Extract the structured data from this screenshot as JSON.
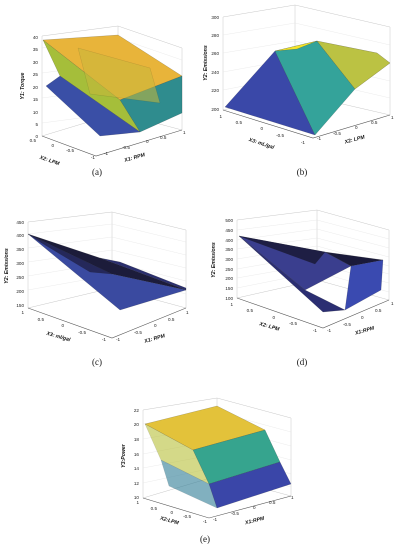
{
  "figure": {
    "captions": [
      "(a)",
      "(b)",
      "(c)",
      "(d)",
      "(e)"
    ]
  },
  "chart_data": [
    {
      "type": "surface",
      "panel": "(a)",
      "zlabel": "Y1: Torque",
      "xlabel": "X1: RPM",
      "ylabel": "X2: LPM",
      "z_ticks": [
        "0",
        "5",
        "10",
        "15",
        "20",
        "25",
        "30",
        "35",
        "40"
      ],
      "x_ticks": [
        "-1",
        "-0.5",
        "0",
        "0.5",
        "1"
      ],
      "y_ticks": [
        "0.5",
        "0",
        "-0.5",
        "-1"
      ],
      "zlim": [
        0,
        40
      ],
      "surface": {
        "z_corner_x-1_y-1": 30,
        "z_corner_x1_y-1": 10,
        "z_corner_x1_y1": 14,
        "z_corner_x-1_y1": 33,
        "z_peak": 35,
        "colormap": "parula"
      }
    },
    {
      "type": "surface",
      "panel": "(b)",
      "zlabel": "Y2: Emissions",
      "xlabel": "X2: LPM",
      "ylabel": "X3: mL/gal",
      "z_ticks": [
        "200",
        "220",
        "240",
        "260",
        "280",
        "300"
      ],
      "x_ticks": [
        "-1",
        "-0.5",
        "0",
        "0.5",
        "1"
      ],
      "y_ticks": [
        "1",
        "0.5",
        "0",
        "-0.5",
        "-1"
      ],
      "zlim": [
        200,
        300
      ],
      "surface": {
        "z_front": 200,
        "z_ridge": 285,
        "z_back": 270,
        "colormap": "parula"
      }
    },
    {
      "type": "surface",
      "panel": "(c)",
      "zlabel": "Y2: Emissions",
      "xlabel": "X1: RPM",
      "ylabel": "X3: ml/gal",
      "z_ticks": [
        "150",
        "200",
        "250",
        "300",
        "350",
        "400",
        "450"
      ],
      "x_ticks": [
        "-1",
        "-0.5",
        "0",
        "0.5",
        "1"
      ],
      "y_ticks": [
        "1",
        "0.5",
        "0",
        "-0.5",
        "-1"
      ],
      "zlim": [
        150,
        450
      ],
      "surface": {
        "z_max": 410,
        "z_min": 180,
        "colormap": "parula"
      }
    },
    {
      "type": "surface",
      "panel": "(d)",
      "zlabel": "Y2: Emissions",
      "xlabel": "X1:RPM",
      "ylabel": "X2: LPM",
      "z_ticks": [
        "100",
        "150",
        "200",
        "250",
        "300",
        "350",
        "400",
        "450",
        "500"
      ],
      "x_ticks": [
        "-1",
        "-0.5",
        "0",
        "0.5",
        "1"
      ],
      "y_ticks": [
        "1",
        "0.5",
        "0",
        "-0.5",
        "-1"
      ],
      "zlim": [
        100,
        500
      ],
      "surface": {
        "z_max": 420,
        "z_min": 120,
        "colormap": "parula"
      }
    },
    {
      "type": "surface",
      "panel": "(e)",
      "zlabel": "Y3:Power",
      "xlabel": "X1:RPM",
      "ylabel": "X2:LPM",
      "z_ticks": [
        "10",
        "12",
        "14",
        "16",
        "18",
        "20",
        "22"
      ],
      "x_ticks": [
        "-1",
        "-0.5",
        "0",
        "0.5",
        "1"
      ],
      "y_ticks": [
        "1",
        "0.5",
        "0",
        "-0.5",
        "-1"
      ],
      "zlim": [
        10,
        22
      ],
      "surface": {
        "z_max": 20,
        "z_min": 11,
        "colormap": "parula"
      }
    }
  ]
}
